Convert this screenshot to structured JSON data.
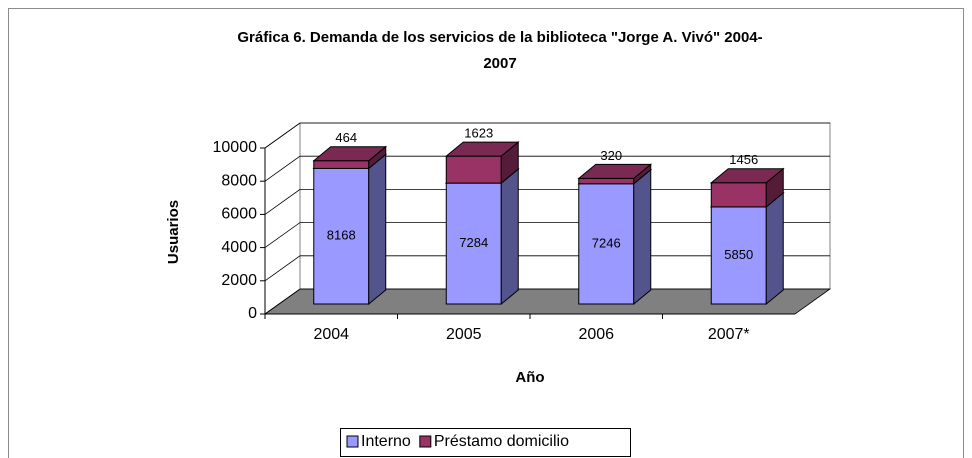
{
  "chart_data": {
    "type": "bar3d_stacked",
    "title": "Gráfica 6. Demanda de los servicios de la biblioteca \"Jorge A. Vivó\" 2004-",
    "title_line2": "2007",
    "x_label": "Año",
    "y_label": "Usuarios",
    "categories": [
      "2004",
      "2005",
      "2006",
      "2007*"
    ],
    "series": [
      {
        "name": "Interno",
        "color": "#9999ff",
        "values": [
          8168,
          7284,
          7246,
          5850
        ]
      },
      {
        "name": "Préstamo domicilio",
        "color": "#993366",
        "values": [
          464,
          1623,
          320,
          1456
        ]
      }
    ],
    "ylim": [
      0,
      10000
    ],
    "yticks": [
      0,
      2000,
      4000,
      6000,
      8000,
      10000
    ],
    "grid": true
  }
}
